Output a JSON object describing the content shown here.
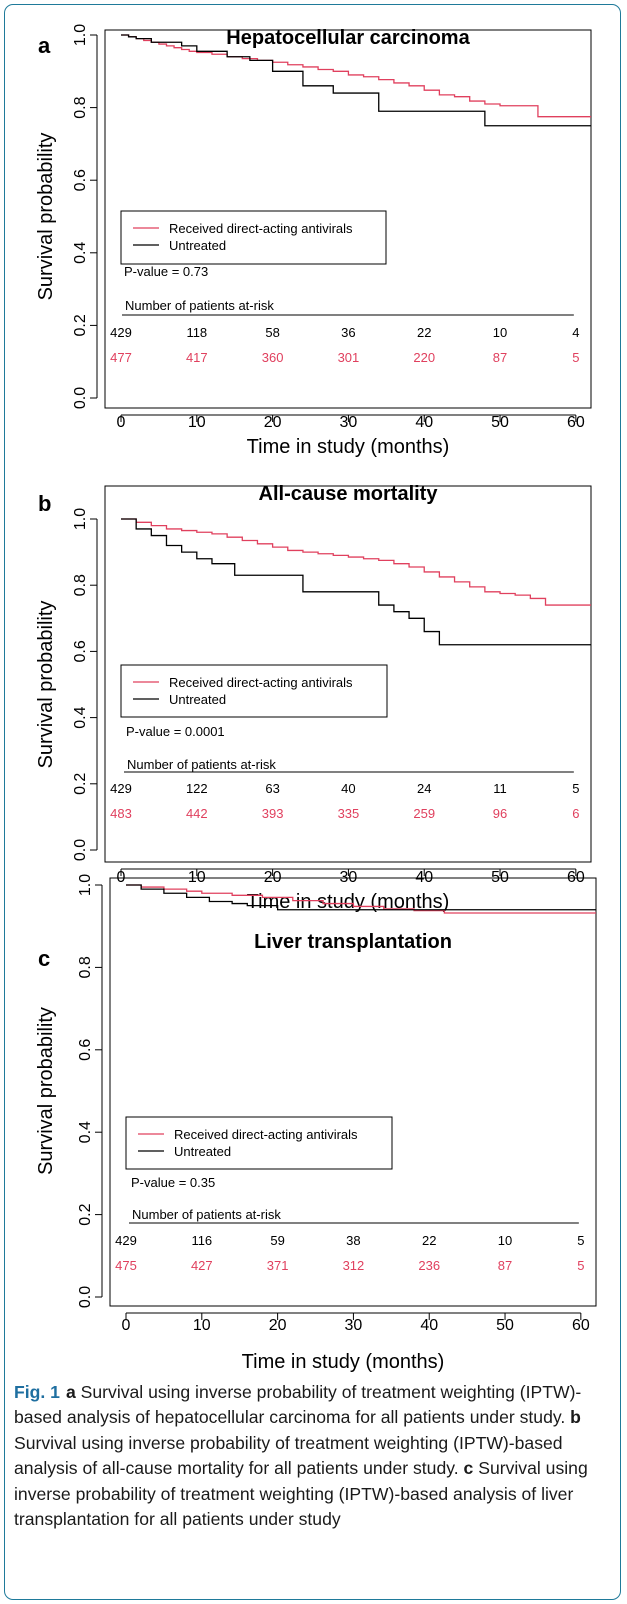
{
  "page": {
    "frame_color": "#1f7a9a"
  },
  "colors": {
    "treated": "#e0405e",
    "untreated": "#000000"
  },
  "caption": {
    "fig_label": "Fig. 1",
    "parts": [
      {
        "letter": "a",
        "text": "Survival using inverse probability of treatment weighting (IPTW)-based analysis of hepatocellular carcinoma for all patients under study."
      },
      {
        "letter": "b",
        "text": "Survival using inverse probability of treatment weighting (IPTW)-based analysis of all-cause mortality for all patients under study."
      },
      {
        "letter": "c",
        "text": "Survival using inverse probability of treatment weighting (IPTW)-based analysis of liver transplantation for all patients under study"
      }
    ]
  },
  "chart_data": [
    {
      "type": "line",
      "step": true,
      "panel_label": "a",
      "title": "Hepatocellular carcinoma",
      "xlabel": "Time in study (months)",
      "ylabel": "Survival probability",
      "xlim": [
        0,
        62
      ],
      "ylim": [
        0,
        1.0
      ],
      "xticks": [
        "0",
        "10",
        "20",
        "30",
        "40",
        "50",
        "60"
      ],
      "yticks": [
        "0.0",
        "0.2",
        "0.4",
        "0.6",
        "0.8",
        "1.0"
      ],
      "legend": {
        "position": "center-left",
        "entries": [
          "Received direct-acting antivirals",
          "Untreated"
        ]
      },
      "p_value": "P-value = 0.73",
      "risk_table": {
        "title": "Number of patients at-risk",
        "times": [
          0,
          10,
          20,
          30,
          40,
          50,
          60
        ],
        "untreated": [
          "429",
          "118",
          "58",
          "36",
          "22",
          "10",
          "4"
        ],
        "treated": [
          "477",
          "417",
          "360",
          "301",
          "220",
          "87",
          "5"
        ]
      },
      "series": [
        {
          "name": "Received direct-acting antivirals",
          "color": "#e0405e",
          "points": [
            [
              0,
              1.0
            ],
            [
              1,
              0.995
            ],
            [
              2,
              0.99
            ],
            [
              3,
              0.985
            ],
            [
              4,
              0.98
            ],
            [
              5,
              0.975
            ],
            [
              6,
              0.97
            ],
            [
              7,
              0.965
            ],
            [
              8,
              0.96
            ],
            [
              9,
              0.955
            ],
            [
              10,
              0.952
            ],
            [
              12,
              0.947
            ],
            [
              14,
              0.94
            ],
            [
              16,
              0.935
            ],
            [
              18,
              0.93
            ],
            [
              20,
              0.925
            ],
            [
              22,
              0.918
            ],
            [
              24,
              0.912
            ],
            [
              26,
              0.905
            ],
            [
              28,
              0.9
            ],
            [
              30,
              0.89
            ],
            [
              32,
              0.885
            ],
            [
              34,
              0.877
            ],
            [
              36,
              0.868
            ],
            [
              38,
              0.86
            ],
            [
              40,
              0.848
            ],
            [
              42,
              0.835
            ],
            [
              44,
              0.83
            ],
            [
              46,
              0.818
            ],
            [
              48,
              0.81
            ],
            [
              50,
              0.805
            ],
            [
              55,
              0.775
            ],
            [
              62,
              0.775
            ]
          ]
        },
        {
          "name": "Untreated",
          "color": "#000000",
          "points": [
            [
              0,
              1.0
            ],
            [
              1,
              0.995
            ],
            [
              2,
              0.99
            ],
            [
              4,
              0.98
            ],
            [
              8,
              0.97
            ],
            [
              10,
              0.955
            ],
            [
              14,
              0.94
            ],
            [
              17,
              0.93
            ],
            [
              20,
              0.9
            ],
            [
              24,
              0.86
            ],
            [
              28,
              0.84
            ],
            [
              34,
              0.79
            ],
            [
              48,
              0.75
            ],
            [
              62,
              0.75
            ]
          ]
        }
      ]
    },
    {
      "type": "line",
      "step": true,
      "panel_label": "b",
      "title": "All-cause mortality",
      "xlabel": "Time in study (months)",
      "ylabel": "Survival probability",
      "xlim": [
        0,
        62
      ],
      "ylim": [
        0,
        1.0
      ],
      "xticks": [
        "0",
        "10",
        "20",
        "30",
        "40",
        "50",
        "60"
      ],
      "yticks": [
        "0.0",
        "0.2",
        "0.4",
        "0.6",
        "0.8",
        "1.0"
      ],
      "legend": {
        "position": "center-left",
        "entries": [
          "Received direct-acting antivirals",
          "Untreated"
        ]
      },
      "p_value": "P-value = 0.0001",
      "risk_table": {
        "title": "Number of patients at-risk",
        "times": [
          0,
          10,
          20,
          30,
          40,
          50,
          60
        ],
        "untreated": [
          "429",
          "122",
          "63",
          "40",
          "24",
          "11",
          "5"
        ],
        "treated": [
          "483",
          "442",
          "393",
          "335",
          "259",
          "96",
          "6"
        ]
      },
      "series": [
        {
          "name": "Received direct-acting antivirals",
          "color": "#e0405e",
          "points": [
            [
              0,
              1.0
            ],
            [
              2,
              0.99
            ],
            [
              4,
              0.98
            ],
            [
              6,
              0.97
            ],
            [
              8,
              0.965
            ],
            [
              10,
              0.96
            ],
            [
              12,
              0.955
            ],
            [
              14,
              0.945
            ],
            [
              16,
              0.935
            ],
            [
              18,
              0.925
            ],
            [
              20,
              0.915
            ],
            [
              22,
              0.905
            ],
            [
              24,
              0.9
            ],
            [
              26,
              0.895
            ],
            [
              28,
              0.89
            ],
            [
              30,
              0.885
            ],
            [
              32,
              0.88
            ],
            [
              34,
              0.875
            ],
            [
              36,
              0.865
            ],
            [
              38,
              0.855
            ],
            [
              40,
              0.84
            ],
            [
              42,
              0.825
            ],
            [
              44,
              0.81
            ],
            [
              46,
              0.795
            ],
            [
              48,
              0.78
            ],
            [
              50,
              0.775
            ],
            [
              52,
              0.77
            ],
            [
              54,
              0.76
            ],
            [
              56,
              0.74
            ],
            [
              62,
              0.74
            ]
          ]
        },
        {
          "name": "Untreated",
          "color": "#000000",
          "points": [
            [
              0,
              1.0
            ],
            [
              2,
              0.97
            ],
            [
              4,
              0.95
            ],
            [
              6,
              0.92
            ],
            [
              8,
              0.9
            ],
            [
              10,
              0.88
            ],
            [
              12,
              0.865
            ],
            [
              15,
              0.83
            ],
            [
              24,
              0.78
            ],
            [
              34,
              0.74
            ],
            [
              36,
              0.72
            ],
            [
              38,
              0.7
            ],
            [
              40,
              0.66
            ],
            [
              42,
              0.62
            ],
            [
              62,
              0.62
            ]
          ]
        }
      ]
    },
    {
      "type": "line",
      "step": true,
      "panel_label": "c",
      "title": "Liver transplantation",
      "xlabel": "Time in study (months)",
      "ylabel": "Survival probability",
      "xlim": [
        0,
        62
      ],
      "ylim": [
        0,
        1.0
      ],
      "xticks": [
        "0",
        "10",
        "20",
        "30",
        "40",
        "50",
        "60"
      ],
      "yticks": [
        "0.0",
        "0.2",
        "0.4",
        "0.6",
        "0.8",
        "1.0"
      ],
      "legend": {
        "position": "center-left",
        "entries": [
          "Received direct-acting antivirals",
          "Untreated"
        ]
      },
      "p_value": "P-value = 0.35",
      "risk_table": {
        "title": "Number of patients at-risk",
        "times": [
          0,
          10,
          20,
          30,
          40,
          50,
          60
        ],
        "untreated": [
          "429",
          "116",
          "59",
          "38",
          "22",
          "10",
          "5"
        ],
        "treated": [
          "475",
          "427",
          "371",
          "312",
          "236",
          "87",
          "5"
        ]
      },
      "series": [
        {
          "name": "Received direct-acting antivirals",
          "color": "#e0405e",
          "points": [
            [
              0,
              1.0
            ],
            [
              2,
              0.995
            ],
            [
              5,
              0.99
            ],
            [
              8,
              0.985
            ],
            [
              10,
              0.98
            ],
            [
              14,
              0.975
            ],
            [
              18,
              0.97
            ],
            [
              22,
              0.962
            ],
            [
              26,
              0.955
            ],
            [
              30,
              0.948
            ],
            [
              34,
              0.942
            ],
            [
              38,
              0.938
            ],
            [
              42,
              0.932
            ],
            [
              62,
              0.932
            ]
          ]
        },
        {
          "name": "Untreated",
          "color": "#000000",
          "points": [
            [
              0,
              1.0
            ],
            [
              2,
              0.99
            ],
            [
              5,
              0.98
            ],
            [
              8,
              0.97
            ],
            [
              11,
              0.96
            ],
            [
              14,
              0.955
            ],
            [
              16,
              0.95
            ],
            [
              20,
              0.94
            ],
            [
              62,
              0.94
            ]
          ]
        }
      ]
    }
  ]
}
